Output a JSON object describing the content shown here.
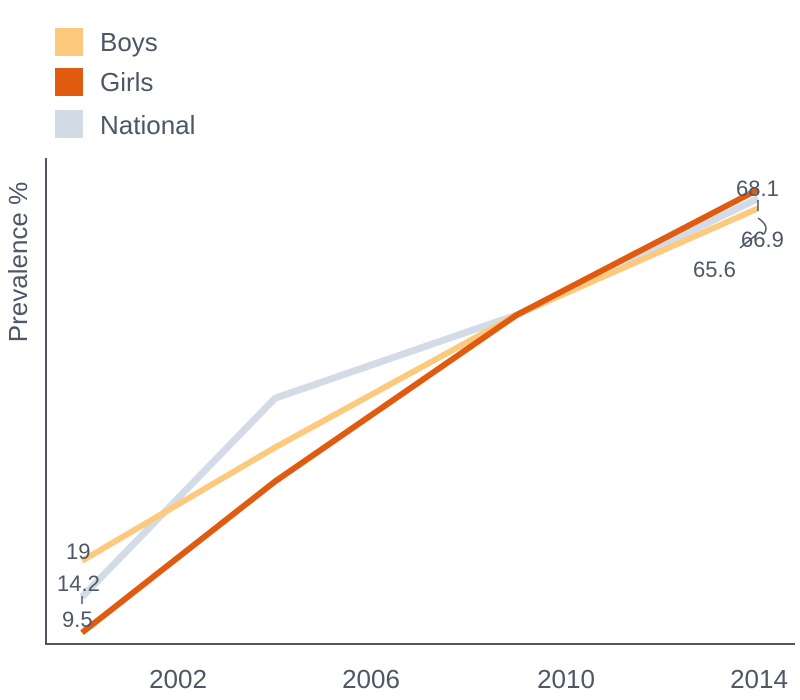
{
  "chart_data": {
    "type": "line",
    "title": "",
    "xlabel": "",
    "ylabel": "Prevalence %",
    "x": [
      2000,
      2004,
      2009,
      2014
    ],
    "x_ticks": [
      "2002",
      "2006",
      "2010",
      "2014"
    ],
    "ylim": [
      8,
      72
    ],
    "grid": false,
    "legend_position": "top-left",
    "series": [
      {
        "name": "Boys",
        "color": "#fcc97d",
        "values": [
          19,
          34,
          51.5,
          65.6
        ]
      },
      {
        "name": "Girls",
        "color": "#e05a10",
        "values": [
          9.5,
          29.5,
          51.5,
          68.1
        ]
      },
      {
        "name": "National",
        "color": "#d3dbe6",
        "values": [
          14.2,
          40.5,
          51.5,
          66.9
        ]
      }
    ],
    "data_labels": [
      {
        "series": "Boys",
        "text": "19"
      },
      {
        "series": "National",
        "text": "14.2"
      },
      {
        "series": "Girls",
        "text": "9.5"
      },
      {
        "series": "Girls",
        "text": "68.1"
      },
      {
        "series": "National",
        "text": "66.9"
      },
      {
        "series": "Boys",
        "text": "65.6"
      }
    ]
  }
}
